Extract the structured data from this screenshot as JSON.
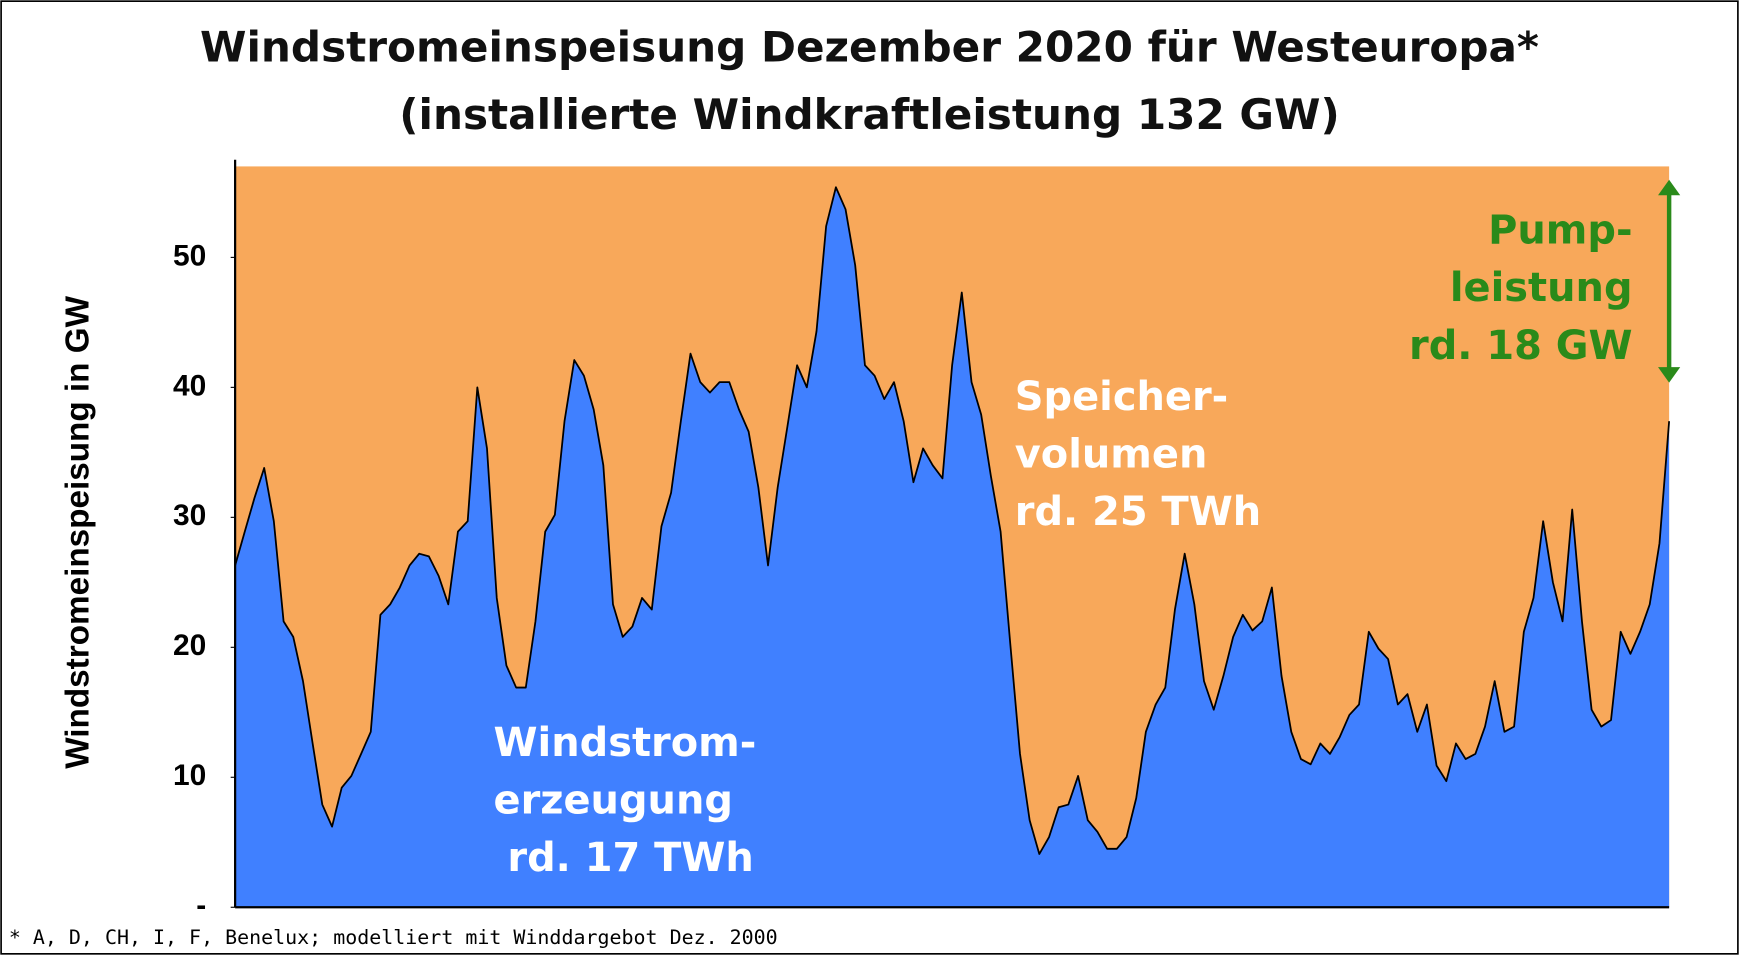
{
  "chart_data": {
    "type": "area",
    "title": [
      "Windstromeinspeisung Dezember 2020 für Westeuropa*",
      "(installierte Windkraftleistung 132 GW)"
    ],
    "y_label": "Windstromeinspeisung in GW",
    "footnote": "* A, D, CH, I, F, Benelux; modelliert mit Winddargebot Dez. 2000",
    "color": "#4080ff",
    "background_color": "#f8a85a",
    "ylim": [
      0,
      57
    ],
    "yticks": [
      {
        "value": 0,
        "label": "-"
      },
      10,
      20,
      30,
      40,
      50
    ],
    "values": [
      26.3,
      28.9,
      31.5,
      33.8,
      29.7,
      22,
      20.8,
      17.4,
      12.6,
      7.9,
      6.2,
      9.2,
      10.1,
      11.8,
      13.5,
      22.5,
      23.3,
      24.6,
      26.3,
      27.2,
      27,
      25.5,
      23.3,
      28.9,
      29.7,
      40,
      35.3,
      23.8,
      18.6,
      16.9,
      16.9,
      22,
      28.9,
      30.2,
      37.4,
      42.1,
      40.9,
      38.3,
      34,
      23.3,
      20.8,
      21.6,
      23.8,
      22.9,
      29.3,
      31.9,
      37.4,
      42.6,
      40.4,
      39.6,
      40.4,
      40.4,
      38.3,
      36.6,
      32.3,
      26.3,
      32.3,
      37,
      41.7,
      40,
      44.3,
      52.4,
      55.4,
      53.7,
      49.4,
      41.7,
      40.9,
      39.1,
      40.4,
      37.4,
      32.7,
      35.3,
      34,
      33,
      41.7,
      47.3,
      40.4,
      37.9,
      33.2,
      28.9,
      20.3,
      11.8,
      6.7,
      4.1,
      5.4,
      7.7,
      7.9,
      10.1,
      6.7,
      5.8,
      4.5,
      4.5,
      5.4,
      8.4,
      13.5,
      15.6,
      16.9,
      22.9,
      27.2,
      23.3,
      17.4,
      15.2,
      17.8,
      20.8,
      22.5,
      21.3,
      22,
      24.6,
      17.8,
      13.5,
      11.4,
      11,
      12.6,
      11.8,
      13.1,
      14.8,
      15.6,
      21.2,
      19.9,
      19.1,
      15.6,
      16.4,
      13.5,
      15.6,
      10.9,
      9.7,
      12.6,
      11.4,
      11.8,
      13.9,
      17.4,
      13.5,
      13.9,
      21.2,
      23.8,
      29.7,
      25,
      22,
      30.6,
      22,
      15.2,
      13.9,
      14.4,
      21.2,
      19.5,
      21.2,
      23.3,
      28,
      37.4
    ],
    "annotations": [
      {
        "lines": [
          "Windstrom-",
          "erzeugung",
          " rd. 17 TWh"
        ],
        "color": "#ffffff"
      },
      {
        "lines": [
          "Speicher-",
          "volumen",
          "rd. 25 TWh"
        ],
        "color": "#ffffff"
      },
      {
        "lines": [
          "Pump-",
          "leistung",
          "rd. 18 GW"
        ],
        "color": "#2a8a1a"
      }
    ]
  }
}
